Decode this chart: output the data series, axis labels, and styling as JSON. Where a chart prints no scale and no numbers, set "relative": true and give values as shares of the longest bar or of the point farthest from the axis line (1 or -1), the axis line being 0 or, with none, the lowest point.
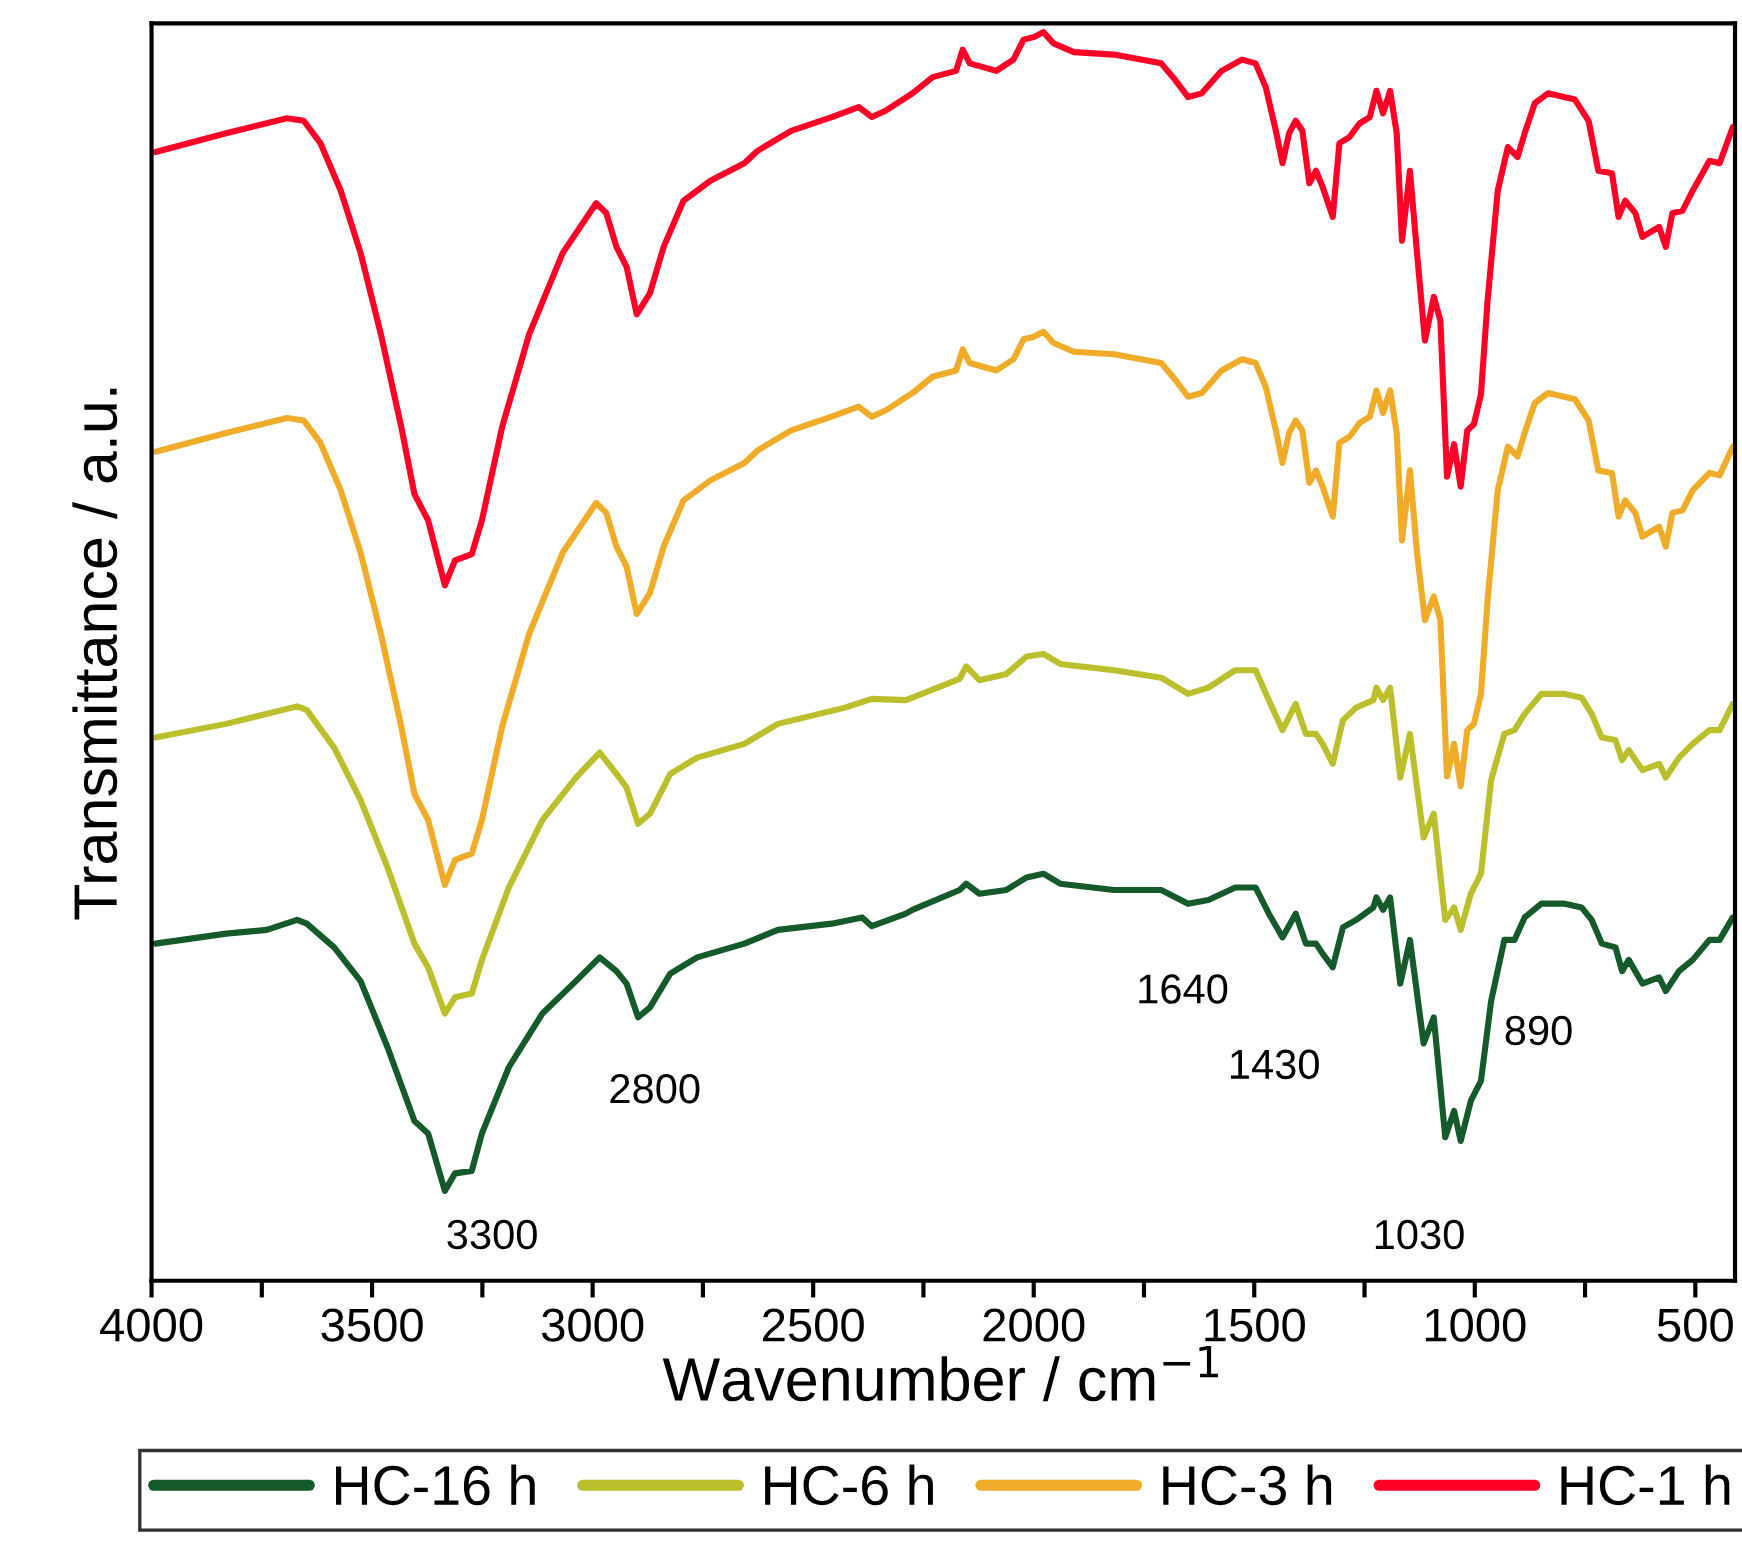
{
  "chart_data": {
    "type": "line",
    "relative": true,
    "xlabel": "Wavenumber / cm$^{−1}$",
    "ylabel": "Transmittance / a.u.",
    "xlim": [
      4000,
      410
    ],
    "xticks": [
      4000,
      {
        "value": 3750,
        "label": null
      },
      3500,
      {
        "value": 3250,
        "label": null
      },
      3000,
      {
        "value": 2750,
        "label": null
      },
      2500,
      {
        "value": 2250,
        "label": null
      },
      2000,
      {
        "value": 1750,
        "label": null
      },
      1500,
      {
        "value": 1250,
        "label": null
      },
      1000,
      {
        "value": 750,
        "label": null
      },
      500
    ],
    "legend": "bottom",
    "grid": false,
    "marker": "none",
    "line_style": "solid",
    "annotations": [
      {
        "text": "3300",
        "x": 3335,
        "y": 0.072
      },
      {
        "text": "2800",
        "x": 2897,
        "y": 0.211
      },
      {
        "text": "1640",
        "x": 1650,
        "y": 0.302
      },
      {
        "text": "1430",
        "x": 1436,
        "y": 0.275
      },
      {
        "text": "1030",
        "x": 1032,
        "y": 0.112
      },
      {
        "text": "890",
        "x": 887,
        "y": 0.291
      }
    ],
    "series": [
      {
        "name": "HC-16 h",
        "color": "#145a2a",
        "x": [
          3991,
          3831,
          3739,
          3670,
          3648,
          3586,
          3526,
          3465,
          3404,
          3373,
          3335,
          3312,
          3274,
          3251,
          3190,
          3114,
          3038,
          2984,
          2946,
          2923,
          2897,
          2870,
          2824,
          2763,
          2656,
          2580,
          2458,
          2389,
          2367,
          2290,
          2275,
          2168,
          2153,
          2123,
          2062,
          2016,
          1978,
          1940,
          1818,
          1711,
          1650,
          1604,
          1543,
          1497,
          1467,
          1436,
          1406,
          1383,
          1360,
          1345,
          1322,
          1299,
          1269,
          1230,
          1223,
          1208,
          1192,
          1169,
          1147,
          1116,
          1093,
          1067,
          1047,
          1032,
          1009,
          986,
          963,
          933,
          910,
          887,
          849,
          796,
          758,
          735,
          712,
          681,
          666,
          651,
          620,
          582,
          567,
          537,
          506,
          468,
          445,
          415
        ],
        "values": [
          0.27,
          0.278,
          0.281,
          0.289,
          0.286,
          0.267,
          0.24,
          0.187,
          0.128,
          0.118,
          0.072,
          0.086,
          0.088,
          0.118,
          0.171,
          0.214,
          0.24,
          0.259,
          0.248,
          0.238,
          0.211,
          0.219,
          0.246,
          0.259,
          0.27,
          0.281,
          0.286,
          0.291,
          0.284,
          0.294,
          0.297,
          0.313,
          0.318,
          0.31,
          0.313,
          0.323,
          0.326,
          0.318,
          0.313,
          0.313,
          0.302,
          0.305,
          0.315,
          0.315,
          0.294,
          0.275,
          0.294,
          0.27,
          0.27,
          0.262,
          0.251,
          0.283,
          0.289,
          0.299,
          0.307,
          0.297,
          0.307,
          0.238,
          0.273,
          0.19,
          0.211,
          0.115,
          0.136,
          0.112,
          0.144,
          0.16,
          0.224,
          0.273,
          0.273,
          0.291,
          0.302,
          0.302,
          0.299,
          0.289,
          0.27,
          0.267,
          0.248,
          0.257,
          0.238,
          0.243,
          0.232,
          0.248,
          0.257,
          0.273,
          0.273,
          0.291
        ]
      },
      {
        "name": "HC-6 h",
        "color": "#bcbf2c",
        "x": [
          3991,
          3831,
          3670,
          3648,
          3586,
          3526,
          3465,
          3404,
          3373,
          3335,
          3312,
          3274,
          3251,
          3190,
          3114,
          3038,
          2984,
          2946,
          2923,
          2897,
          2870,
          2824,
          2763,
          2656,
          2580,
          2428,
          2367,
          2290,
          2275,
          2168,
          2153,
          2123,
          2062,
          2016,
          1978,
          1940,
          1818,
          1711,
          1650,
          1604,
          1543,
          1497,
          1467,
          1436,
          1406,
          1383,
          1360,
          1345,
          1322,
          1299,
          1269,
          1230,
          1223,
          1208,
          1192,
          1169,
          1147,
          1116,
          1093,
          1067,
          1047,
          1032,
          1009,
          986,
          963,
          933,
          910,
          887,
          849,
          796,
          758,
          735,
          712,
          681,
          666,
          651,
          620,
          582,
          567,
          537,
          506,
          468,
          445,
          415
        ],
        "values": [
          0.435,
          0.446,
          0.46,
          0.457,
          0.427,
          0.385,
          0.331,
          0.27,
          0.251,
          0.214,
          0.227,
          0.23,
          0.257,
          0.315,
          0.369,
          0.403,
          0.423,
          0.406,
          0.395,
          0.366,
          0.374,
          0.406,
          0.419,
          0.43,
          0.446,
          0.459,
          0.466,
          0.465,
          0.467,
          0.482,
          0.492,
          0.481,
          0.486,
          0.5,
          0.502,
          0.494,
          0.489,
          0.483,
          0.47,
          0.475,
          0.489,
          0.489,
          0.465,
          0.441,
          0.462,
          0.438,
          0.438,
          0.43,
          0.414,
          0.449,
          0.459,
          0.465,
          0.475,
          0.465,
          0.475,
          0.403,
          0.438,
          0.355,
          0.374,
          0.289,
          0.299,
          0.281,
          0.31,
          0.326,
          0.401,
          0.438,
          0.441,
          0.454,
          0.47,
          0.47,
          0.467,
          0.454,
          0.435,
          0.433,
          0.417,
          0.425,
          0.409,
          0.414,
          0.403,
          0.419,
          0.43,
          0.441,
          0.441,
          0.462
        ]
      },
      {
        "name": "HC-3 h",
        "color": "#f0ac28",
        "x": [
          3991,
          3831,
          3693,
          3655,
          3617,
          3571,
          3526,
          3480,
          3434,
          3404,
          3373,
          3335,
          3312,
          3274,
          3251,
          3205,
          3144,
          3068,
          2992,
          2969,
          2946,
          2923,
          2900,
          2870,
          2839,
          2794,
          2733,
          2656,
          2626,
          2550,
          2458,
          2397,
          2367,
          2336,
          2275,
          2229,
          2176,
          2161,
          2145,
          2085,
          2046,
          2023,
          2000,
          1978,
          1955,
          1909,
          1818,
          1711,
          1680,
          1650,
          1619,
          1574,
          1528,
          1497,
          1474,
          1451,
          1436,
          1421,
          1406,
          1391,
          1375,
          1360,
          1345,
          1322,
          1307,
          1284,
          1261,
          1238,
          1223,
          1208,
          1192,
          1177,
          1165,
          1147,
          1131,
          1113,
          1093,
          1078,
          1063,
          1047,
          1032,
          1017,
          1002,
          986,
          971,
          948,
          925,
          903,
          887,
          864,
          834,
          773,
          742,
          720,
          689,
          674,
          659,
          636,
          620,
          582,
          567,
          552,
          529,
          506,
          468,
          445,
          415
        ],
        "values": [
          0.664,
          0.679,
          0.691,
          0.689,
          0.671,
          0.633,
          0.583,
          0.518,
          0.444,
          0.39,
          0.369,
          0.317,
          0.337,
          0.342,
          0.369,
          0.444,
          0.518,
          0.583,
          0.623,
          0.615,
          0.588,
          0.572,
          0.534,
          0.551,
          0.588,
          0.625,
          0.641,
          0.655,
          0.665,
          0.681,
          0.692,
          0.7,
          0.692,
          0.697,
          0.711,
          0.724,
          0.729,
          0.746,
          0.735,
          0.729,
          0.738,
          0.754,
          0.756,
          0.76,
          0.751,
          0.744,
          0.742,
          0.735,
          0.722,
          0.708,
          0.711,
          0.729,
          0.738,
          0.735,
          0.716,
          0.681,
          0.655,
          0.679,
          0.689,
          0.681,
          0.639,
          0.649,
          0.636,
          0.612,
          0.671,
          0.676,
          0.687,
          0.692,
          0.713,
          0.695,
          0.713,
          0.679,
          0.593,
          0.649,
          0.583,
          0.529,
          0.548,
          0.529,
          0.404,
          0.43,
          0.396,
          0.441,
          0.446,
          0.47,
          0.545,
          0.633,
          0.668,
          0.66,
          0.679,
          0.703,
          0.711,
          0.706,
          0.689,
          0.649,
          0.647,
          0.612,
          0.625,
          0.615,
          0.596,
          0.604,
          0.588,
          0.615,
          0.617,
          0.633,
          0.647,
          0.645,
          0.668
        ]
      },
      {
        "name": "HC-1 h",
        "color": "#ff0026",
        "x": [
          3991,
          3831,
          3693,
          3655,
          3617,
          3571,
          3526,
          3480,
          3434,
          3404,
          3373,
          3335,
          3312,
          3274,
          3251,
          3205,
          3144,
          3068,
          2992,
          2969,
          2946,
          2923,
          2900,
          2870,
          2839,
          2794,
          2733,
          2656,
          2626,
          2550,
          2458,
          2397,
          2367,
          2336,
          2275,
          2229,
          2176,
          2161,
          2145,
          2085,
          2046,
          2023,
          2000,
          1978,
          1955,
          1909,
          1818,
          1711,
          1680,
          1650,
          1619,
          1574,
          1528,
          1497,
          1474,
          1451,
          1436,
          1421,
          1406,
          1391,
          1375,
          1360,
          1345,
          1322,
          1307,
          1284,
          1261,
          1238,
          1223,
          1208,
          1192,
          1177,
          1165,
          1147,
          1131,
          1113,
          1093,
          1078,
          1063,
          1047,
          1032,
          1017,
          1002,
          986,
          971,
          948,
          925,
          903,
          887,
          864,
          834,
          773,
          742,
          720,
          689,
          674,
          659,
          636,
          620,
          582,
          567,
          552,
          529,
          506,
          468,
          445,
          415
        ],
        "values": [
          0.904,
          0.919,
          0.931,
          0.929,
          0.911,
          0.873,
          0.823,
          0.758,
          0.684,
          0.63,
          0.609,
          0.557,
          0.577,
          0.582,
          0.609,
          0.684,
          0.758,
          0.823,
          0.863,
          0.855,
          0.828,
          0.812,
          0.774,
          0.791,
          0.828,
          0.865,
          0.881,
          0.895,
          0.905,
          0.921,
          0.932,
          0.94,
          0.932,
          0.937,
          0.951,
          0.964,
          0.969,
          0.986,
          0.975,
          0.969,
          0.978,
          0.994,
          0.996,
          1.0,
          0.991,
          0.984,
          0.982,
          0.975,
          0.962,
          0.948,
          0.951,
          0.969,
          0.978,
          0.975,
          0.956,
          0.921,
          0.895,
          0.919,
          0.929,
          0.921,
          0.879,
          0.889,
          0.876,
          0.852,
          0.911,
          0.916,
          0.927,
          0.932,
          0.953,
          0.935,
          0.953,
          0.919,
          0.833,
          0.889,
          0.823,
          0.753,
          0.788,
          0.769,
          0.644,
          0.67,
          0.636,
          0.681,
          0.686,
          0.71,
          0.785,
          0.873,
          0.908,
          0.9,
          0.919,
          0.943,
          0.951,
          0.946,
          0.929,
          0.889,
          0.887,
          0.852,
          0.865,
          0.855,
          0.836,
          0.844,
          0.828,
          0.855,
          0.857,
          0.873,
          0.897,
          0.895,
          0.924
        ]
      }
    ]
  }
}
